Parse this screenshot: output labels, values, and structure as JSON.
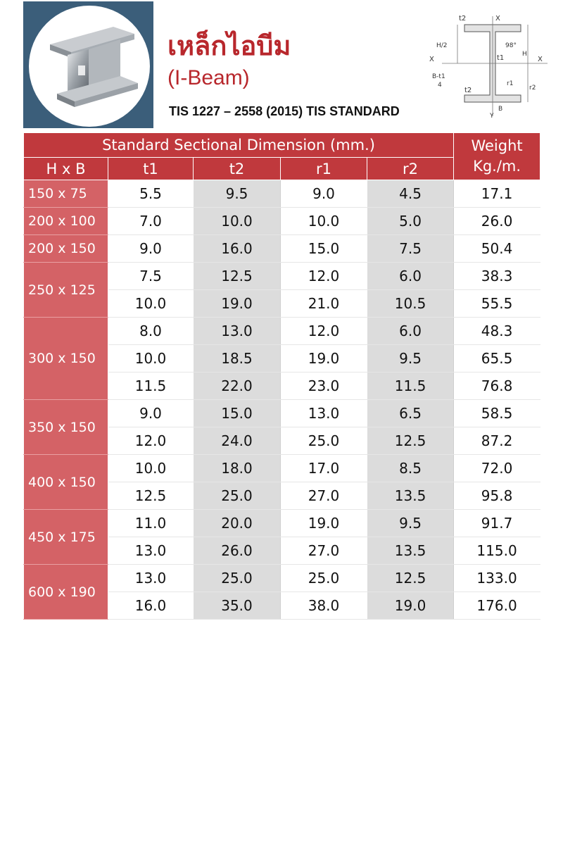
{
  "header": {
    "title_thai": "เหล็กไอบีม",
    "title_english": "(I-Beam)",
    "standard": "TIS 1227 – 2558 (2015) TIS STANDARD"
  },
  "diagram_labels": {
    "t2_top": "t2",
    "x_top": "X",
    "h_half": "H/2",
    "x_left": "X",
    "angle": "98°",
    "t1": "t1",
    "h_right": "H",
    "x_right": "X",
    "bt1": "B-t1",
    "four": "4",
    "r1": "r1",
    "r2": "r2",
    "t2_bottom": "t2",
    "y": "Y",
    "b": "B"
  },
  "table": {
    "group_header": "Standard Sectional Dimension (mm.)",
    "weight_header_1": "Weight",
    "weight_header_2": "Kg./m.",
    "columns": [
      "H x B",
      "t1",
      "t2",
      "r1",
      "r2"
    ],
    "groups": [
      {
        "size": "150 x 75",
        "rows": [
          [
            "5.5",
            "9.5",
            "9.0",
            "4.5",
            "17.1"
          ]
        ]
      },
      {
        "size": "200 x 100",
        "rows": [
          [
            "7.0",
            "10.0",
            "10.0",
            "5.0",
            "26.0"
          ]
        ]
      },
      {
        "size": "200 x 150",
        "rows": [
          [
            "9.0",
            "16.0",
            "15.0",
            "7.5",
            "50.4"
          ]
        ]
      },
      {
        "size": "250 x 125",
        "rows": [
          [
            "7.5",
            "12.5",
            "12.0",
            "6.0",
            "38.3"
          ],
          [
            "10.0",
            "19.0",
            "21.0",
            "10.5",
            "55.5"
          ]
        ]
      },
      {
        "size": "300 x 150",
        "rows": [
          [
            "8.0",
            "13.0",
            "12.0",
            "6.0",
            "48.3"
          ],
          [
            "10.0",
            "18.5",
            "19.0",
            "9.5",
            "65.5"
          ],
          [
            "11.5",
            "22.0",
            "23.0",
            "11.5",
            "76.8"
          ]
        ]
      },
      {
        "size": "350 x 150",
        "rows": [
          [
            "9.0",
            "15.0",
            "13.0",
            "6.5",
            "58.5"
          ],
          [
            "12.0",
            "24.0",
            "25.0",
            "12.5",
            "87.2"
          ]
        ]
      },
      {
        "size": "400 x 150",
        "rows": [
          [
            "10.0",
            "18.0",
            "17.0",
            "8.5",
            "72.0"
          ],
          [
            "12.5",
            "25.0",
            "27.0",
            "13.5",
            "95.8"
          ]
        ]
      },
      {
        "size": "450 x 175",
        "rows": [
          [
            "11.0",
            "20.0",
            "19.0",
            "9.5",
            "91.7"
          ],
          [
            "13.0",
            "26.0",
            "27.0",
            "13.5",
            "115.0"
          ]
        ]
      },
      {
        "size": "600 x 190",
        "rows": [
          [
            "13.0",
            "25.0",
            "25.0",
            "12.5",
            "133.0"
          ],
          [
            "16.0",
            "35.0",
            "38.0",
            "19.0",
            "176.0"
          ]
        ]
      }
    ]
  }
}
